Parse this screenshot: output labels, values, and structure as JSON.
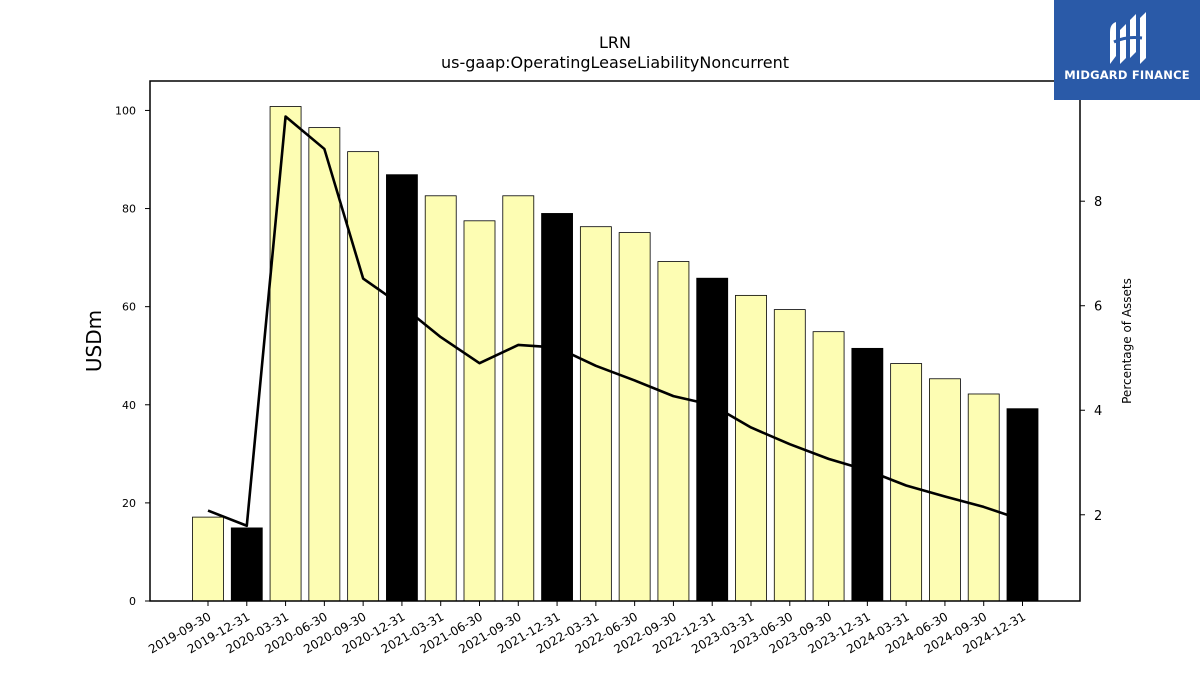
{
  "chart_data": {
    "type": "bar",
    "title": "LRN",
    "subtitle": "us-gaap:OperatingLeaseLiabilityNoncurrent",
    "ylabel": "USDm",
    "y2label": "Percentage of Assets",
    "ylim": [
      0,
      106
    ],
    "y2lim": [
      0.35,
      10.3
    ],
    "yticks": [
      0,
      20,
      40,
      60,
      80,
      100
    ],
    "y2ticks": [
      2,
      4,
      6,
      8
    ],
    "categories": [
      "2019-09-30",
      "2019-12-31",
      "2020-03-31",
      "2020-06-30",
      "2020-09-30",
      "2020-12-31",
      "2021-03-31",
      "2021-06-30",
      "2021-09-30",
      "2021-12-31",
      "2022-03-31",
      "2022-06-30",
      "2022-09-30",
      "2022-12-31",
      "2023-03-31",
      "2023-06-30",
      "2023-09-30",
      "2023-12-31",
      "2024-03-31",
      "2024-06-30",
      "2024-09-30",
      "2024-12-31"
    ],
    "series": [
      {
        "kind": "bar",
        "values": [
          17.1,
          14.9,
          100.8,
          96.5,
          91.6,
          86.9,
          82.6,
          77.5,
          82.6,
          79.0,
          76.3,
          75.1,
          69.2,
          65.8,
          62.3,
          59.4,
          54.9,
          51.5,
          48.4,
          45.3,
          42.2,
          39.2
        ],
        "year_end": [
          false,
          true,
          false,
          false,
          false,
          true,
          false,
          false,
          false,
          true,
          false,
          false,
          false,
          true,
          false,
          false,
          false,
          true,
          false,
          false,
          false,
          true
        ]
      },
      {
        "kind": "line",
        "axis": "right",
        "values": [
          2.08,
          1.79,
          9.62,
          9.0,
          6.52,
          6.0,
          5.4,
          4.9,
          5.25,
          5.2,
          4.85,
          4.57,
          4.27,
          4.1,
          3.67,
          3.35,
          3.07,
          2.85,
          2.56,
          2.35,
          2.15,
          1.9
        ]
      }
    ],
    "colors": {
      "bar": "#fdfdb3",
      "bar_year_end": "#000000",
      "line": "#000000",
      "logo_bg": "#2a5aa8"
    },
    "legend": "none",
    "grid": false
  },
  "logo": {
    "text": "MIDGARD FINANCE",
    "icon": "midgard-logo-icon"
  }
}
